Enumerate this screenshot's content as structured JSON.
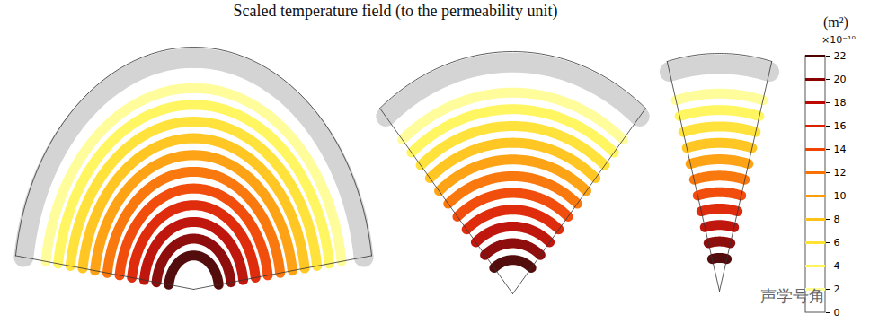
{
  "chart_data": {
    "type": "isosurface",
    "title": "Scaled temperature field (to the permeability unit)",
    "colorbar": {
      "label": "(m²)",
      "multiplier": "×10⁻¹⁰",
      "range": [
        0,
        22
      ],
      "ticks": [
        0,
        2,
        4,
        6,
        8,
        10,
        12,
        14,
        16,
        18,
        20,
        22
      ]
    },
    "levels": [
      2,
      4,
      6,
      8,
      10,
      12,
      14,
      16,
      18,
      20,
      22
    ],
    "watermark": "声学号角"
  }
}
